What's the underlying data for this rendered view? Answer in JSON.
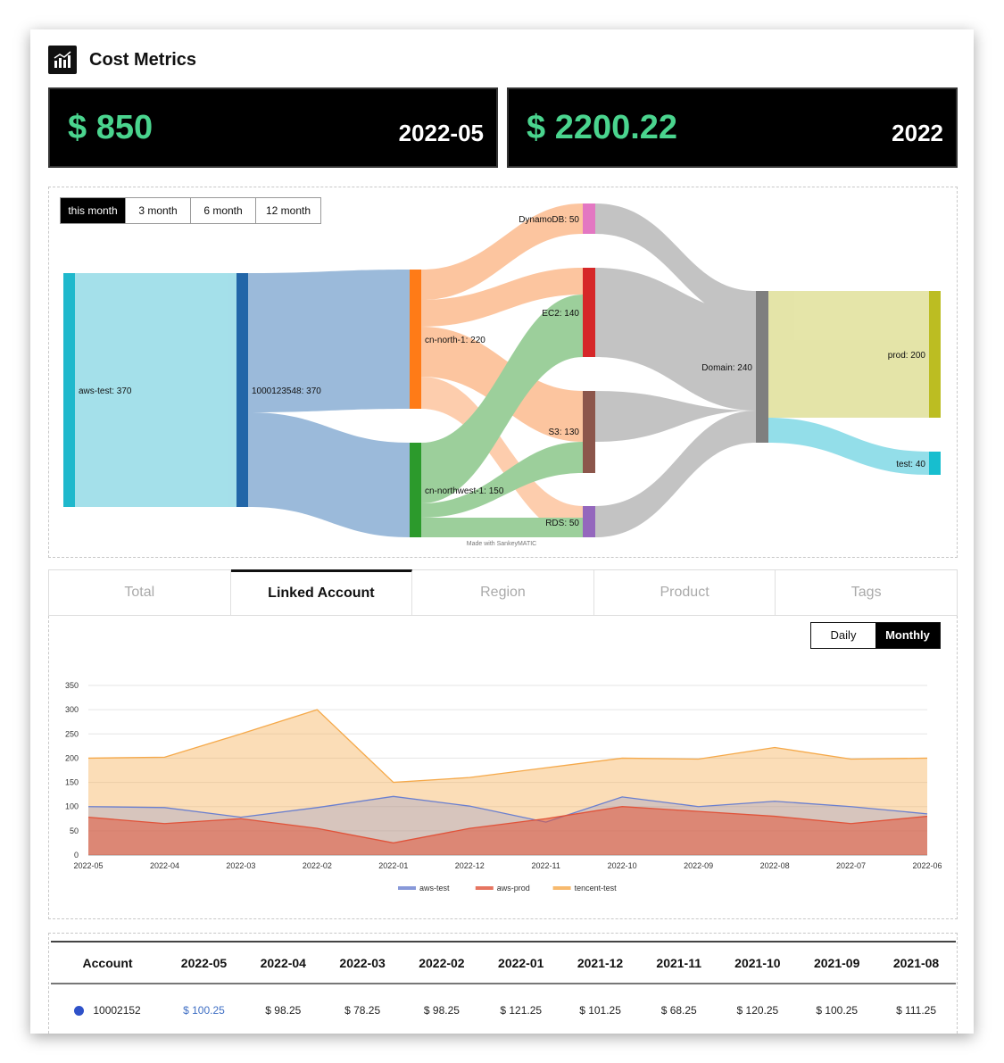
{
  "header": {
    "title": "Cost Metrics",
    "logo_icon": "bar-chart-icon"
  },
  "kpis": [
    {
      "amount": "$ 850",
      "period": "2022-05"
    },
    {
      "amount": "$ 2200.22",
      "period": "2022"
    }
  ],
  "sankey": {
    "range_buttons": [
      "this month",
      "3 month",
      "6 month",
      "12 month"
    ],
    "active_range": "this month",
    "nodes": {
      "aws_test": "aws-test: 370",
      "account": "1000123548: 370",
      "cn_north": "cn-north-1: 220",
      "cn_northwest": "cn-northwest-1: 150",
      "dynamodb": "DynamoDB: 50",
      "ec2": "EC2: 140",
      "s3": "S3: 130",
      "rds": "RDS: 50",
      "domain": "Domain: 240",
      "prod": "prod: 200",
      "test": "test: 40"
    },
    "footer": "Made with SankeyMATIC"
  },
  "tabs": [
    "Total",
    "Linked Account",
    "Region",
    "Product",
    "Tags"
  ],
  "active_tab": "Linked Account",
  "granularity": {
    "daily": "Daily",
    "monthly": "Monthly",
    "active": "Monthly"
  },
  "chart_data": {
    "type": "area",
    "x": [
      "2022-05",
      "2022-04",
      "2022-03",
      "2022-02",
      "2022-01",
      "2022-12",
      "2022-11",
      "2022-10",
      "2022-09",
      "2022-08",
      "2022-07",
      "2022-06"
    ],
    "ylim": [
      0,
      350
    ],
    "yticks": [
      0,
      50,
      100,
      150,
      200,
      250,
      300,
      350
    ],
    "grid": true,
    "legend_position": "bottom",
    "series": [
      {
        "name": "tencent-test",
        "color": "#f5a94a",
        "values": [
          200,
          202,
          250,
          300,
          150,
          160,
          180,
          200,
          198,
          222,
          198,
          200
        ]
      },
      {
        "name": "aws-test",
        "color": "#6a7fcf",
        "values": [
          100,
          98,
          78,
          98,
          121,
          101,
          68,
          120,
          100,
          111,
          100,
          85
        ]
      },
      {
        "name": "aws-prod",
        "color": "#e0533a",
        "values": [
          78,
          65,
          75,
          55,
          25,
          55,
          75,
          100,
          90,
          80,
          65,
          80
        ]
      }
    ]
  },
  "table": {
    "columns": [
      "Account",
      "2022-05",
      "2022-04",
      "2022-03",
      "2022-02",
      "2022-01",
      "2021-12",
      "2021-11",
      "2021-10",
      "2021-09",
      "2021-08"
    ],
    "rows": [
      {
        "account": "10002152",
        "dot_color": "#2f52c9",
        "values": [
          "$ 100.25",
          "$ 98.25",
          "$ 78.25",
          "$ 98.25",
          "$ 121.25",
          "$ 101.25",
          "$ 68.25",
          "$ 120.25",
          "$ 100.25",
          "$ 111.25"
        ]
      }
    ]
  }
}
